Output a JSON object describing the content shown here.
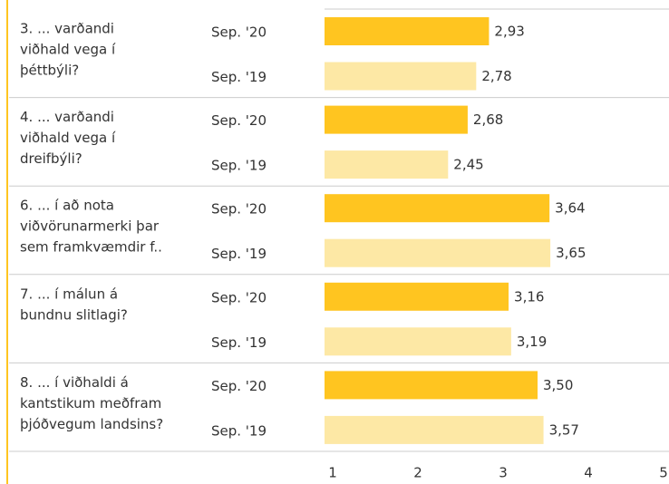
{
  "chart_data": {
    "type": "bar",
    "categories": [
      [
        "3. ... varðandi",
        "viðhald vega í",
        "þéttbýli?"
      ],
      [
        "4. ... varðandi",
        "viðhald vega í",
        "dreifbýli?"
      ],
      [
        "6. ... í að nota",
        "viðvörunarmerki þar",
        "sem framkvæmdir f.."
      ],
      [
        "7. ... í málun á",
        "bundnu slitlagi?"
      ],
      [
        "8. ...  í viðhaldi á",
        "kantstikum meðfram",
        "þjóðvegum landsins?"
      ]
    ],
    "series": [
      {
        "name": "Sep. '20",
        "color": "#ffc520",
        "values": [
          2.93,
          2.68,
          3.64,
          3.16,
          3.5
        ],
        "value_labels": [
          "2,93",
          "2,68",
          "3,64",
          "3,16",
          "3,50"
        ]
      },
      {
        "name": "Sep. '19",
        "color": "#fde8a5",
        "values": [
          2.78,
          2.45,
          3.65,
          3.19,
          3.57
        ],
        "value_labels": [
          "2,78",
          "2,45",
          "3,65",
          "3,19",
          "3,57"
        ]
      }
    ],
    "xlim": [
      1,
      5
    ],
    "xticks": [
      1,
      2,
      3,
      4,
      5
    ]
  }
}
